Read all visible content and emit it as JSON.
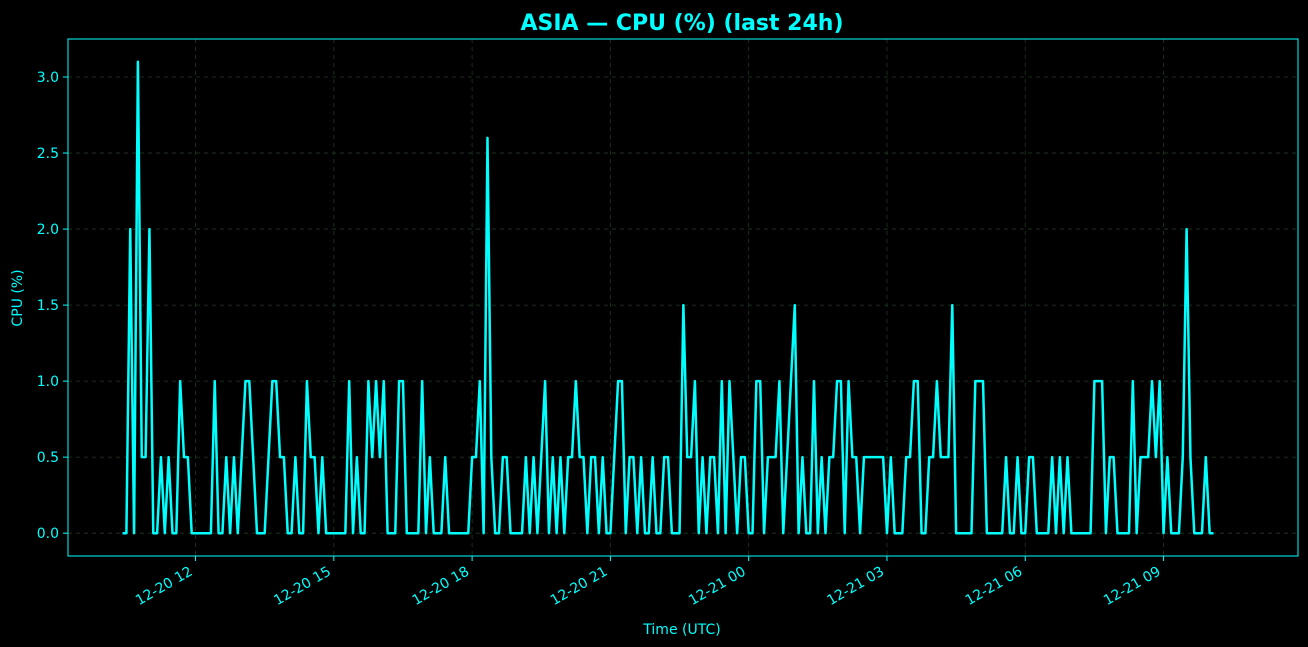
{
  "colors": {
    "background": "#000000",
    "accent": "#00ffff",
    "grid": "#1f3a1f"
  },
  "chart_data": {
    "type": "line",
    "title": "ASIA — CPU (%) (last 24h)",
    "xlabel": "Time (UTC)",
    "ylabel": "CPU (%)",
    "x_range": [
      "2020-12-20 09:14",
      "2020-12-21 11:55"
    ],
    "ylim": [
      -0.15,
      3.25
    ],
    "x_ticks": [
      {
        "t": "2020-12-20 12:00",
        "label": "12-20 12"
      },
      {
        "t": "2020-12-20 15:00",
        "label": "12-20 15"
      },
      {
        "t": "2020-12-20 18:00",
        "label": "12-20 18"
      },
      {
        "t": "2020-12-20 21:00",
        "label": "12-20 21"
      },
      {
        "t": "2020-12-21 00:00",
        "label": "12-21 00"
      },
      {
        "t": "2020-12-21 03:00",
        "label": "12-21 03"
      },
      {
        "t": "2020-12-21 06:00",
        "label": "12-21 06"
      },
      {
        "t": "2020-12-21 09:00",
        "label": "12-21 09"
      }
    ],
    "y_ticks": [
      {
        "v": 0,
        "label": "0.0"
      },
      {
        "v": 0.5,
        "label": "0.5"
      },
      {
        "v": 1,
        "label": "1.0"
      },
      {
        "v": 1.5,
        "label": "1.5"
      },
      {
        "v": 2,
        "label": "2.0"
      },
      {
        "v": 2.5,
        "label": "2.5"
      },
      {
        "v": 3,
        "label": "3.0"
      }
    ],
    "grid": true,
    "series": [
      {
        "start": "2020-12-20 10:25",
        "interval_minutes": 5,
        "values": [
          0,
          0,
          2,
          0,
          3.1,
          0.5,
          0.5,
          2,
          0,
          0,
          0.5,
          0,
          0.5,
          0,
          0,
          1,
          0.5,
          0.5,
          0,
          0,
          0,
          0,
          0,
          0,
          1,
          0,
          0,
          0.5,
          0,
          0.5,
          0,
          0.5,
          1,
          1,
          0.5,
          0,
          0,
          0,
          0.5,
          1,
          1,
          0.5,
          0.5,
          0,
          0,
          0.5,
          0,
          0,
          1,
          0.5,
          0.5,
          0,
          0.5,
          0,
          0,
          0,
          0,
          0,
          0,
          1,
          0,
          0.5,
          0,
          0,
          1,
          0.5,
          1,
          0.5,
          1,
          0,
          0,
          0,
          1,
          1,
          0,
          0,
          0,
          0,
          1,
          0,
          0.5,
          0,
          0,
          0,
          0.5,
          0,
          0,
          0,
          0,
          0,
          0,
          0.5,
          0.5,
          1,
          0,
          2.6,
          0.5,
          0,
          0,
          0.5,
          0.5,
          0,
          0,
          0,
          0,
          0.5,
          0,
          0.5,
          0,
          0.5,
          1,
          0,
          0.5,
          0,
          0.5,
          0,
          0.5,
          0.5,
          1,
          0.5,
          0.5,
          0,
          0.5,
          0.5,
          0,
          0.5,
          0,
          0,
          0.5,
          1,
          1,
          0,
          0.5,
          0.5,
          0,
          0.5,
          0,
          0,
          0.5,
          0,
          0,
          0.5,
          0.5,
          0,
          0,
          0,
          1.5,
          0.5,
          0.5,
          1,
          0,
          0.5,
          0,
          0.5,
          0.5,
          0,
          1,
          0,
          1,
          0.5,
          0,
          0.5,
          0.5,
          0,
          0,
          1,
          1,
          0,
          0.5,
          0.5,
          0.5,
          1,
          0,
          0.5,
          1,
          1.5,
          0,
          0.5,
          0,
          0,
          1,
          0,
          0.5,
          0,
          0.5,
          0.5,
          1,
          1,
          0,
          1,
          0.5,
          0.5,
          0,
          0.5,
          0.5,
          0.5,
          0.5,
          0.5,
          0.5,
          0,
          0.5,
          0,
          0,
          0,
          0.5,
          0.5,
          1,
          1,
          0,
          0,
          0.5,
          0.5,
          1,
          0.5,
          0.5,
          0.5,
          1.5,
          0,
          0,
          0,
          0,
          0,
          1,
          1,
          1,
          0,
          0,
          0,
          0,
          0,
          0.5,
          0,
          0,
          0.5,
          0,
          0,
          0.5,
          0.5,
          0,
          0,
          0,
          0,
          0.5,
          0,
          0.5,
          0,
          0.5,
          0,
          0,
          0,
          0,
          0,
          0,
          1,
          1,
          1,
          0,
          0.5,
          0.5,
          0,
          0,
          0,
          0,
          1,
          0,
          0.5,
          0.5,
          0.5,
          1,
          0.5,
          1,
          0,
          0.5,
          0,
          0,
          0,
          0.5,
          2,
          0.5,
          0,
          0,
          0,
          0.5,
          0,
          0
        ]
      }
    ]
  }
}
